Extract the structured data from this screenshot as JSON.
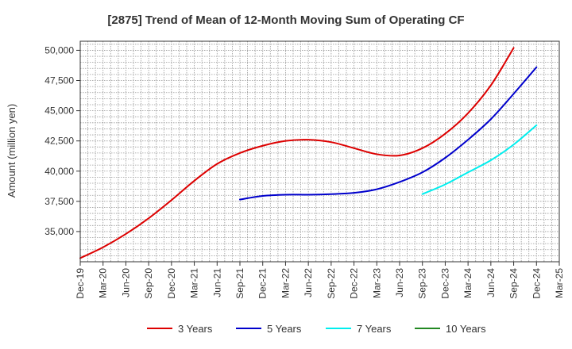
{
  "chart_data": {
    "type": "line",
    "title": "[2875]  Trend of Mean of 12-Month Moving Sum of Operating CF",
    "xlabel": "",
    "ylabel": "Amount (million yen)",
    "ylim": [
      32500,
      50750
    ],
    "yticks": [
      35000,
      37500,
      40000,
      42500,
      45000,
      47500,
      50000
    ],
    "ytick_labels": [
      "35,000",
      "37,500",
      "40,000",
      "42,500",
      "45,000",
      "47,500",
      "50,000"
    ],
    "xticks": [
      "Dec-19",
      "Mar-20",
      "Jun-20",
      "Sep-20",
      "Dec-20",
      "Mar-21",
      "Jun-21",
      "Sep-21",
      "Dec-21",
      "Mar-22",
      "Jun-22",
      "Sep-22",
      "Dec-22",
      "Mar-23",
      "Jun-23",
      "Sep-23",
      "Dec-23",
      "Mar-24",
      "Jun-24",
      "Sep-24",
      "Dec-24",
      "Mar-25"
    ],
    "grid": true,
    "legend_position": "bottom",
    "series": [
      {
        "name": "3 Years",
        "color": "#dd0000",
        "start_index": 0,
        "values": [
          32800,
          33700,
          34800,
          36100,
          37600,
          39200,
          40600,
          41500,
          42100,
          42500,
          42600,
          42400,
          41900,
          41400,
          41300,
          41900,
          43100,
          44800,
          47100,
          50200
        ]
      },
      {
        "name": "5 Years",
        "color": "#0000cc",
        "start_index": 7,
        "values": [
          37650,
          37950,
          38050,
          38050,
          38100,
          38200,
          38500,
          39100,
          39900,
          41100,
          42600,
          44300,
          46400,
          48600
        ]
      },
      {
        "name": "7 Years",
        "color": "#00eeee",
        "start_index": 15,
        "values": [
          38100,
          38900,
          39900,
          40900,
          42200,
          43800
        ]
      },
      {
        "name": "10 Years",
        "color": "#228822",
        "start_index": null,
        "values": []
      }
    ]
  }
}
